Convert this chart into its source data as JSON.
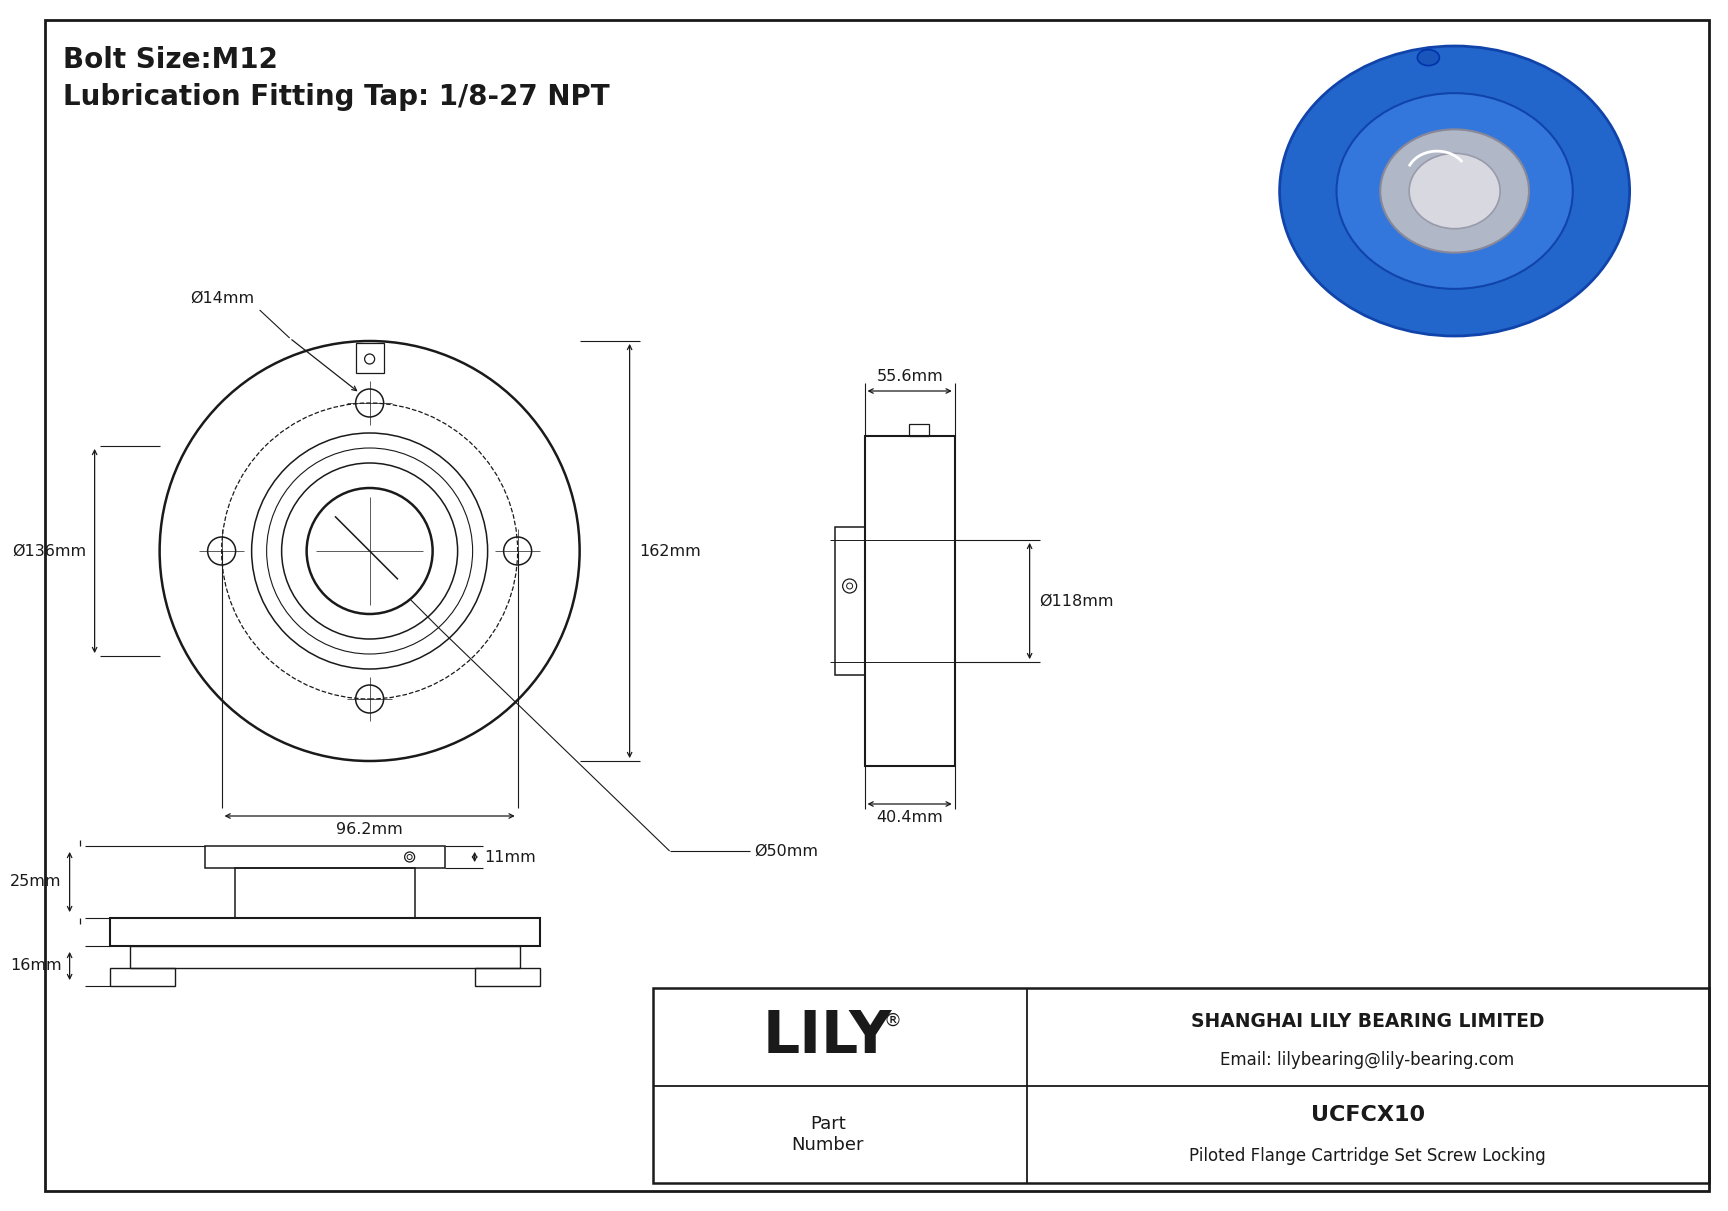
{
  "bg_color": "#ffffff",
  "line_color": "#1a1a1a",
  "title_line1": "Bolt Size:M12",
  "title_line2": "Lubrication Fitting Tap: 1/8-27 NPT",
  "title_fontsize": 20,
  "dim_fontsize": 11.5,
  "company_name": "SHANGHAI LILY BEARING LIMITED",
  "company_email": "Email: lilybearing@lily-bearing.com",
  "part_label": "Part\nNumber",
  "part_number": "UCFCX10",
  "part_desc": "Piloted Flange Cartridge Set Screw Locking",
  "brand": "LILY",
  "brand_reg": "®",
  "dims": {
    "bolt_hole_dia": "Ø14mm",
    "flange_dia": "Ø136mm",
    "bolt_circle": "96.2mm",
    "bore_dia": "Ø50mm",
    "overall_height": "162mm",
    "side_width": "55.6mm",
    "side_height": "40.4mm",
    "side_bore_dia": "Ø118mm",
    "front_top": "25mm",
    "front_right": "11mm",
    "front_bottom": "16mm"
  }
}
